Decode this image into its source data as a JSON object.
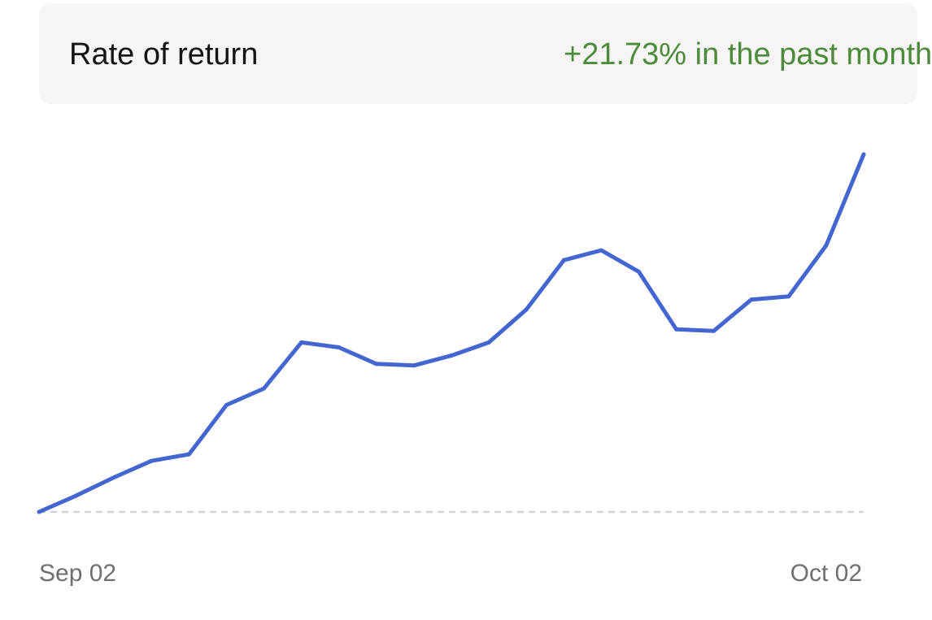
{
  "header": {
    "title": "Rate of return",
    "return_text": "+21.73% in the past month"
  },
  "colors": {
    "line": "#4466d0",
    "baseline": "#d3d3d3",
    "positive": "#4c8a3c",
    "card_bg": "#f6f5f3"
  },
  "chart_data": {
    "type": "line",
    "title": "Rate of return",
    "xlabel": "",
    "ylabel": "",
    "x_ticks": [
      "Sep 02",
      "Oct 02"
    ],
    "ylim": [
      0,
      21.73
    ],
    "baseline": 0,
    "grid": false,
    "series": [
      {
        "values": [
          0,
          1.0,
          2.1,
          3.1,
          3.5,
          6.5,
          7.5,
          10.3,
          10.0,
          9.0,
          8.9,
          9.5,
          10.3,
          12.3,
          15.3,
          15.9,
          14.6,
          11.1,
          11.0,
          12.9,
          13.1,
          16.2,
          21.73
        ]
      }
    ]
  }
}
